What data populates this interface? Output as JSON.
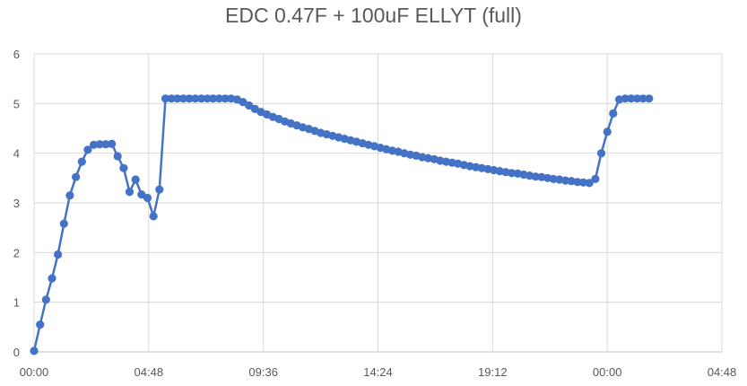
{
  "chart_data": {
    "type": "line",
    "title": "EDC 0.47F + 100uF ELLYT (full)",
    "xlabel": "",
    "ylabel": "",
    "x_unit": "minutes",
    "xlim": [
      0,
      1728
    ],
    "ylim": [
      0,
      6
    ],
    "x_tick_values": [
      0,
      288,
      576,
      864,
      1152,
      1440,
      1728
    ],
    "x_tick_labels": [
      "00:00",
      "04:48",
      "09:36",
      "14:24",
      "19:12",
      "00:00",
      "04:48"
    ],
    "y_ticks": [
      0,
      1,
      2,
      3,
      4,
      5,
      6
    ],
    "grid": true,
    "legend": "none",
    "color": "#4472C4",
    "series": [
      {
        "x": [
          0,
          15,
          30,
          45,
          60,
          75,
          90,
          105,
          120,
          135,
          150,
          165,
          180,
          195,
          210,
          225,
          240,
          255,
          270,
          285,
          300,
          315,
          330,
          345,
          360,
          375,
          390,
          405,
          420,
          435,
          450,
          465,
          480,
          495,
          510,
          525,
          540,
          555,
          570,
          585,
          600,
          615,
          630,
          645,
          660,
          675,
          690,
          705,
          720,
          735,
          750,
          765,
          780,
          795,
          810,
          825,
          840,
          855,
          870,
          885,
          900,
          915,
          930,
          945,
          960,
          975,
          990,
          1005,
          1020,
          1035,
          1050,
          1065,
          1080,
          1095,
          1110,
          1125,
          1140,
          1155,
          1170,
          1185,
          1200,
          1215,
          1230,
          1245,
          1260,
          1275,
          1290,
          1305,
          1320,
          1335,
          1350,
          1365,
          1380,
          1395,
          1410,
          1425,
          1440,
          1455,
          1470,
          1485,
          1500,
          1515,
          1530,
          1545
        ],
        "y": [
          0.02,
          0.55,
          1.05,
          1.48,
          1.96,
          2.58,
          3.15,
          3.52,
          3.83,
          4.07,
          4.17,
          4.18,
          4.18,
          4.19,
          3.94,
          3.7,
          3.22,
          3.47,
          3.17,
          3.1,
          2.73,
          3.27,
          5.1,
          5.1,
          5.1,
          5.1,
          5.1,
          5.1,
          5.1,
          5.1,
          5.1,
          5.1,
          5.1,
          5.1,
          5.08,
          5.03,
          4.96,
          4.89,
          4.83,
          4.78,
          4.73,
          4.69,
          4.64,
          4.6,
          4.56,
          4.52,
          4.49,
          4.45,
          4.41,
          4.38,
          4.35,
          4.32,
          4.29,
          4.26,
          4.23,
          4.2,
          4.17,
          4.14,
          4.11,
          4.08,
          4.05,
          4.03,
          4.0,
          3.97,
          3.95,
          3.92,
          3.9,
          3.88,
          3.85,
          3.83,
          3.81,
          3.79,
          3.76,
          3.74,
          3.72,
          3.7,
          3.68,
          3.66,
          3.64,
          3.62,
          3.6,
          3.59,
          3.57,
          3.55,
          3.53,
          3.52,
          3.5,
          3.48,
          3.47,
          3.45,
          3.44,
          3.42,
          3.41,
          3.4,
          3.48,
          4.0,
          4.43,
          4.8,
          5.08,
          5.1,
          5.1,
          5.1,
          5.1,
          5.1
        ]
      }
    ]
  }
}
